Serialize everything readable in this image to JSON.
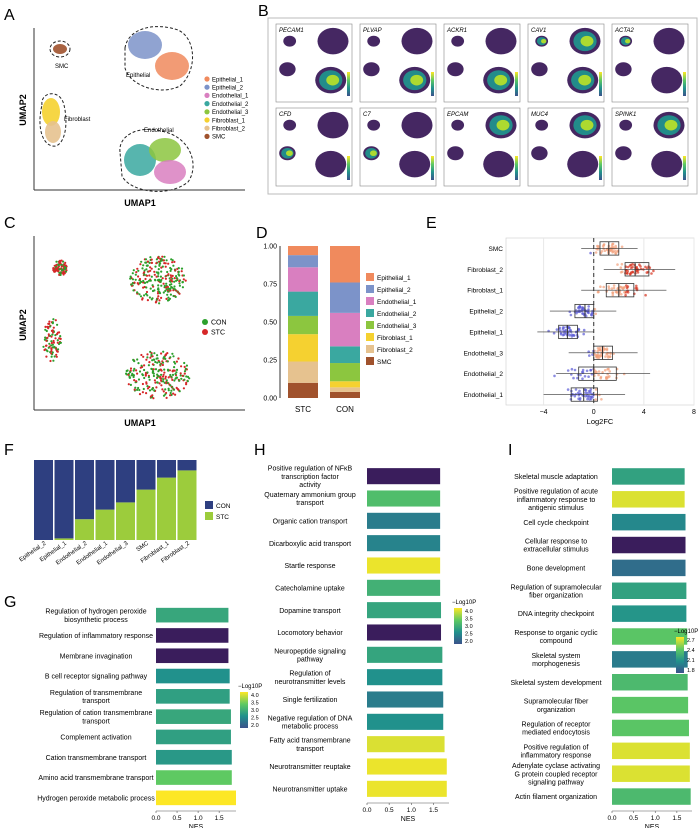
{
  "figure_type": "multi-panel scientific figure",
  "colors": {
    "Epithelial_1": "#f08a5d",
    "Epithelial_2": "#7c93c9",
    "Endothelial_1": "#d97fc0",
    "Endothelial_2": "#3aa8a0",
    "Endothelial_3": "#8cc63f",
    "Fibroblast_1": "#f5d130",
    "Fibroblast_2": "#e6c28f",
    "SMC": "#a0522d",
    "CON": "#2ca02c",
    "STC": "#d62728",
    "f_CON": "#2e3f80",
    "f_STC": "#9ccc3c",
    "viridis": [
      "#440154",
      "#3b528b",
      "#21918c",
      "#5ec962",
      "#fde725"
    ]
  },
  "panels": {
    "A": {
      "label": "A",
      "xlabel": "UMAP1",
      "ylabel": "UMAP2",
      "cluster_labels": [
        "SMC",
        "Epithelial",
        "Fibroblast",
        "Endothelial"
      ],
      "legend": [
        "Epithelial_1",
        "Epithelial_2",
        "Endothelial_1",
        "Endothelial_2",
        "Endothelial_3",
        "Fibroblast_1",
        "Fibroblast_2",
        "SMC"
      ]
    },
    "B": {
      "label": "B",
      "genes": [
        "PECAM1",
        "PLVAP",
        "ACKR1",
        "CAV1",
        "ACTA2",
        "CFD",
        "C7",
        "EPCAM",
        "MUC4",
        "SPINK1"
      ]
    },
    "C": {
      "label": "C",
      "xlabel": "UMAP1",
      "ylabel": "UMAP2",
      "legend": [
        "CON",
        "STC"
      ]
    },
    "D": {
      "label": "D"
    },
    "E": {
      "label": "E"
    },
    "F": {
      "label": "F"
    },
    "G": {
      "label": "G",
      "legend_title": "−Log10P"
    },
    "H": {
      "label": "H",
      "legend_title": "−Log10P"
    },
    "I": {
      "label": "I",
      "legend_title": "−Log10P"
    }
  },
  "chart_data": [
    {
      "id": "D",
      "type": "bar",
      "stacked": true,
      "categories": [
        "STC",
        "CON"
      ],
      "series": [
        {
          "name": "SMC",
          "values": [
            0.1,
            0.04
          ]
        },
        {
          "name": "Fibroblast_2",
          "values": [
            0.14,
            0.03
          ]
        },
        {
          "name": "Fibroblast_1",
          "values": [
            0.18,
            0.04
          ]
        },
        {
          "name": "Endothelial_3",
          "values": [
            0.12,
            0.12
          ]
        },
        {
          "name": "Endothelial_2",
          "values": [
            0.16,
            0.11
          ]
        },
        {
          "name": "Endothelial_1",
          "values": [
            0.16,
            0.22
          ]
        },
        {
          "name": "Epithelial_2",
          "values": [
            0.08,
            0.2
          ]
        },
        {
          "name": "Epithelial_1",
          "values": [
            0.06,
            0.24
          ]
        }
      ],
      "legend": [
        "Epithelial_1",
        "Epithelial_2",
        "Endothelial_1",
        "Endothelial_2",
        "Endothelial_3",
        "Fibroblast_1",
        "Fibroblast_2",
        "SMC"
      ],
      "yticks": [
        "0.00",
        "0.25",
        "0.50",
        "0.75",
        "1.00"
      ],
      "ylim": [
        0,
        1
      ]
    },
    {
      "id": "E",
      "type": "boxplot",
      "categories": [
        "SMC",
        "Fibroblast_2",
        "Fibroblast_1",
        "Epithelial_2",
        "Epithelial_1",
        "Endothelial_3",
        "Endothelial_2",
        "Endothelial_1"
      ],
      "stats": [
        {
          "name": "SMC",
          "q1": 0.5,
          "median": 1.2,
          "q3": 2.0,
          "lo": -1.0,
          "hi": 3.5
        },
        {
          "name": "Fibroblast_2",
          "q1": 2.5,
          "median": 3.3,
          "q3": 4.4,
          "lo": 0.8,
          "hi": 6.5
        },
        {
          "name": "Fibroblast_1",
          "q1": 1.0,
          "median": 2.0,
          "q3": 3.2,
          "lo": -1.0,
          "hi": 5.8
        },
        {
          "name": "Epithelial_2",
          "q1": -1.5,
          "median": -0.7,
          "q3": 0.0,
          "lo": -3.5,
          "hi": 1.8
        },
        {
          "name": "Epithelial_1",
          "q1": -2.8,
          "median": -2.1,
          "q3": -1.3,
          "lo": -4.5,
          "hi": 0.0
        },
        {
          "name": "Endothelial_3",
          "q1": 0.0,
          "median": 0.7,
          "q3": 1.5,
          "lo": -2.0,
          "hi": 3.5
        },
        {
          "name": "Endothelial_2",
          "q1": -1.2,
          "median": 0.0,
          "q3": 1.8,
          "lo": -3.0,
          "hi": 4.5
        },
        {
          "name": "Endothelial_1",
          "q1": -1.8,
          "median": -0.8,
          "q3": 0.3,
          "lo": -4.0,
          "hi": 2.5
        }
      ],
      "xlabel": "Log2FC",
      "xticks": [
        -4,
        0,
        4,
        8
      ],
      "xlim": [
        -7,
        8
      ]
    },
    {
      "id": "F",
      "type": "bar",
      "stacked": true,
      "categories": [
        "Epithelial_2",
        "Epithelial_1",
        "Endothelial_2",
        "Endothelial_1",
        "Endothelial_3",
        "SMC",
        "Fibroblast_1",
        "Fibroblast_2"
      ],
      "series": [
        {
          "name": "STC",
          "values": [
            0.0,
            0.02,
            0.26,
            0.38,
            0.47,
            0.63,
            0.78,
            0.87
          ]
        },
        {
          "name": "CON",
          "values": [
            1.0,
            0.98,
            0.74,
            0.62,
            0.53,
            0.37,
            0.22,
            0.13
          ]
        }
      ],
      "legend": [
        "CON",
        "STC"
      ]
    },
    {
      "id": "G",
      "type": "bar",
      "orientation": "horizontal",
      "categories": [
        "Regulation of hydrogen peroxide biosynthetic process",
        "Regulation of inflammatory response",
        "Membrane invagination",
        "B cell receptor signaling pathway",
        "Regulation of transmembrane transport",
        "Regulation of cation transmembrane transport",
        "Complement activation",
        "Cation transmembrane transport",
        "Amino acid transmembrane transport",
        "Hydrogen peroxide metabolic process"
      ],
      "values": [
        1.72,
        1.72,
        1.72,
        1.75,
        1.75,
        1.78,
        1.78,
        1.8,
        1.8,
        1.9
      ],
      "colors": [
        2.9,
        1.7,
        2.0,
        2.6,
        2.8,
        2.9,
        2.8,
        2.7,
        3.4,
        4.2
      ],
      "xlabel": "NES",
      "xticks": [
        "0.0",
        "0.5",
        "1.0",
        "1.5"
      ],
      "xlim": [
        0,
        1.9
      ],
      "legend_ticks": [
        "4.0",
        "3.5",
        "3.0",
        "2.5",
        "2.0"
      ],
      "legend_range": [
        1.8,
        4.2
      ]
    },
    {
      "id": "H",
      "type": "bar",
      "orientation": "horizontal",
      "categories": [
        "Positive regulation of NFκB transcription factor activity",
        "Quaternary ammonium group transport",
        "Organic cation transport",
        "Dicarboxylic acid transport",
        "Startle response",
        "Catecholamine uptake",
        "Dopamine transport",
        "Locomotory behavior",
        "Neuropeptide signaling pathway",
        "Regulation of neurotransmitter levels",
        "Single fertilization",
        "Negative regulation of DNA metabolic process",
        "Fatty acid transmembrane transport",
        "Neurotransmitter reuptake",
        "Neurotransmitter uptake"
      ],
      "values": [
        1.65,
        1.65,
        1.65,
        1.65,
        1.65,
        1.65,
        1.67,
        1.67,
        1.7,
        1.7,
        1.72,
        1.72,
        1.75,
        1.8,
        1.8
      ],
      "colors": [
        1.6,
        3.2,
        2.2,
        2.3,
        4.2,
        3.0,
        2.8,
        1.7,
        2.8,
        2.5,
        2.2,
        2.5,
        4.1,
        4.2,
        4.2
      ],
      "xlabel": "NES",
      "xticks": [
        "0.0",
        "0.5",
        "1.0",
        "1.5"
      ],
      "xlim": [
        0,
        1.85
      ],
      "legend_ticks": [
        "4.0",
        "3.5",
        "3.0",
        "2.5",
        "2.0"
      ],
      "legend_range": [
        1.6,
        4.3
      ]
    },
    {
      "id": "I",
      "type": "bar",
      "orientation": "horizontal",
      "categories": [
        "Skeletal muscle adaptation",
        "Positive regulation of acute inflammatory response to antigenic stimulus",
        "Cell cycle checkpoint",
        "Cellular response to extracellular stimulus",
        "Bone development",
        "Regulation of supramolecular fiber organization",
        "DNA integrity checkpoint",
        "Response to organic cyclic compound",
        "Skeletal system morphogenesis",
        "Skeletal system development",
        "Supramolecular fiber organization",
        "Regulation of receptor mediated endocytosis",
        "Positive regulation of inflammatory response",
        "Adenylate cyclase activating G protein coupled receptor signaling pathway",
        "Actin filament organization"
      ],
      "values": [
        1.68,
        1.68,
        1.7,
        1.7,
        1.7,
        1.72,
        1.72,
        1.74,
        1.75,
        1.75,
        1.76,
        1.78,
        1.8,
        1.8,
        1.82
      ],
      "colors": [
        2.1,
        2.8,
        1.9,
        1.5,
        1.7,
        2.1,
        2.0,
        2.4,
        1.8,
        2.3,
        2.4,
        2.4,
        2.8,
        2.8,
        2.3
      ],
      "xlabel": "NES",
      "xticks": [
        "0.0",
        "0.5",
        "1.0",
        "1.5"
      ],
      "xlim": [
        0,
        1.85
      ],
      "legend_ticks": [
        "2.7",
        "2.4",
        "2.1",
        "1.8"
      ],
      "legend_range": [
        1.5,
        2.9
      ]
    }
  ]
}
